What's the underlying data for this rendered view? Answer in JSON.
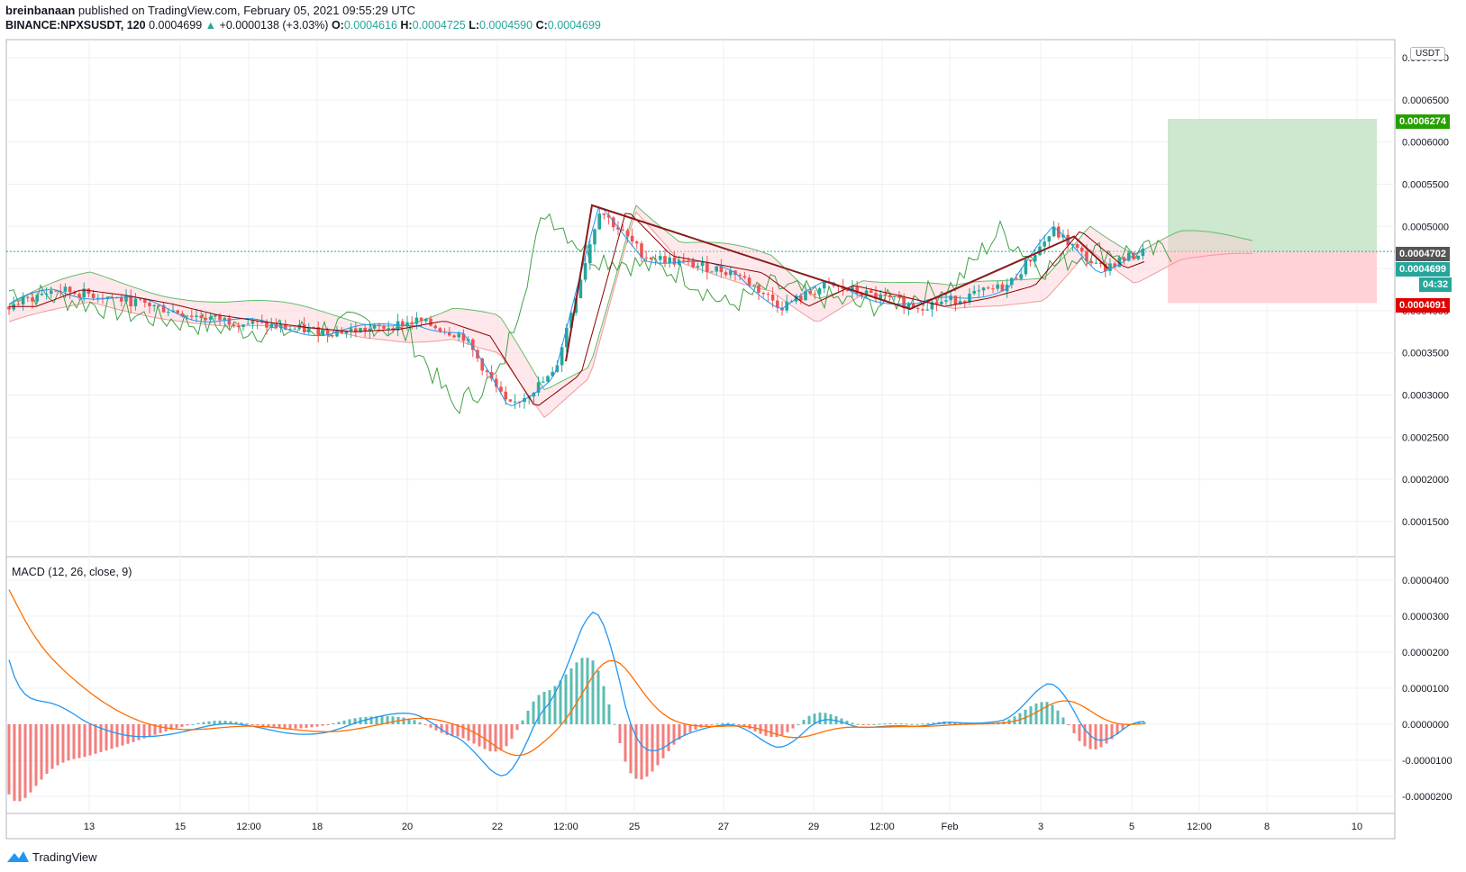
{
  "header": {
    "author": "breinbanaan",
    "published": "published on TradingView.com, February 05, 2021 09:55:29 UTC",
    "symbol": "BINANCE:NPXSUSDT, 120",
    "last": "0.0004699",
    "change": "+0.0000138 (+3.03%)",
    "o_label": "O:",
    "o": "0.0004616",
    "h_label": "H:",
    "h": "0.0004725",
    "l_label": "L:",
    "l": "0.0004590",
    "c_label": "C:",
    "c": "0.0004699"
  },
  "price_axis": {
    "unit": "USDT",
    "ticks": [
      "0.0007000",
      "0.0006500",
      "0.0006000",
      "0.0005500",
      "0.0005000",
      "0.0004500",
      "0.0004000",
      "0.0003500",
      "0.0003000",
      "0.0002500",
      "0.0002000",
      "0.0001500"
    ],
    "labels": {
      "take_profit": "0.0006274",
      "current_upper": "0.0004702",
      "current": "0.0004699",
      "countdown": "04:32",
      "stop_loss": "0.0004091"
    }
  },
  "macd": {
    "title": "MACD (12, 26, close, 9)",
    "ticks": [
      "0.0000400",
      "0.0000300",
      "0.0000200",
      "0.0000100",
      "0.0000000",
      "-0.0000100",
      "-0.0000200"
    ]
  },
  "time_axis": {
    "ticks": [
      "13",
      "15",
      "12:00",
      "18",
      "20",
      "22",
      "12:00",
      "25",
      "27",
      "29",
      "12:00",
      "Feb",
      "3",
      "5",
      "12:00",
      "8",
      "10"
    ]
  },
  "colors": {
    "up": "#26a69a",
    "down": "#ef5350",
    "macd_line": "#2196f3",
    "signal_line": "#ff6d00",
    "tenkan": "#2196f3",
    "kijun": "#8b0000",
    "chikou": "#43a047",
    "pattern": "#8b1a1a",
    "tp_zone": "#c8e6c9",
    "sl_zone": "#ffcdd2",
    "tp_tag": "#26a000",
    "sl_tag": "#e00000",
    "cur_tag": "#555555"
  },
  "brand": "TradingView",
  "chart_data": {
    "type": "candlestick",
    "symbol": "BINANCE:NPXSUSDT",
    "interval": "120",
    "ylim": [
      0.0001,
      0.0007
    ],
    "price_path": [
      {
        "date": "Jan 11",
        "price": 0.000405
      },
      {
        "date": "Jan 12",
        "price": 0.000425
      },
      {
        "date": "Jan 13",
        "price": 0.000418
      },
      {
        "date": "Jan 14",
        "price": 0.000408
      },
      {
        "date": "Jan 15",
        "price": 0.000395
      },
      {
        "date": "Jan 16",
        "price": 0.000387
      },
      {
        "date": "Jan 17",
        "price": 0.00038
      },
      {
        "date": "Jan 18",
        "price": 0.000375
      },
      {
        "date": "Jan 19",
        "price": 0.000378
      },
      {
        "date": "Jan 20",
        "price": 0.000388
      },
      {
        "date": "Jan 21",
        "price": 0.00037
      },
      {
        "date": "Jan 22",
        "price": 0.000285
      },
      {
        "date": "Jan 23",
        "price": 0.000325
      },
      {
        "date": "Jan 24",
        "price": 0.00052
      },
      {
        "date": "Jan 25",
        "price": 0.000465
      },
      {
        "date": "Jan 26",
        "price": 0.000455
      },
      {
        "date": "Jan 27",
        "price": 0.000445
      },
      {
        "date": "Jan 28",
        "price": 0.000405
      },
      {
        "date": "Jan 29",
        "price": 0.00043
      },
      {
        "date": "Jan 30",
        "price": 0.000418
      },
      {
        "date": "Jan 31",
        "price": 0.000405
      },
      {
        "date": "Feb 1",
        "price": 0.000415
      },
      {
        "date": "Feb 2",
        "price": 0.00043
      },
      {
        "date": "Feb 3",
        "price": 0.000495
      },
      {
        "date": "Feb 4",
        "price": 0.00045
      },
      {
        "date": "Feb 5",
        "price": 0.00047
      }
    ],
    "position_tool": {
      "entry": 0.0004702,
      "take_profit": 0.0006274,
      "stop_loss": 0.0004091
    },
    "indicators": [
      "Ichimoku Cloud",
      "MACD (12, 26, close, 9)"
    ]
  }
}
